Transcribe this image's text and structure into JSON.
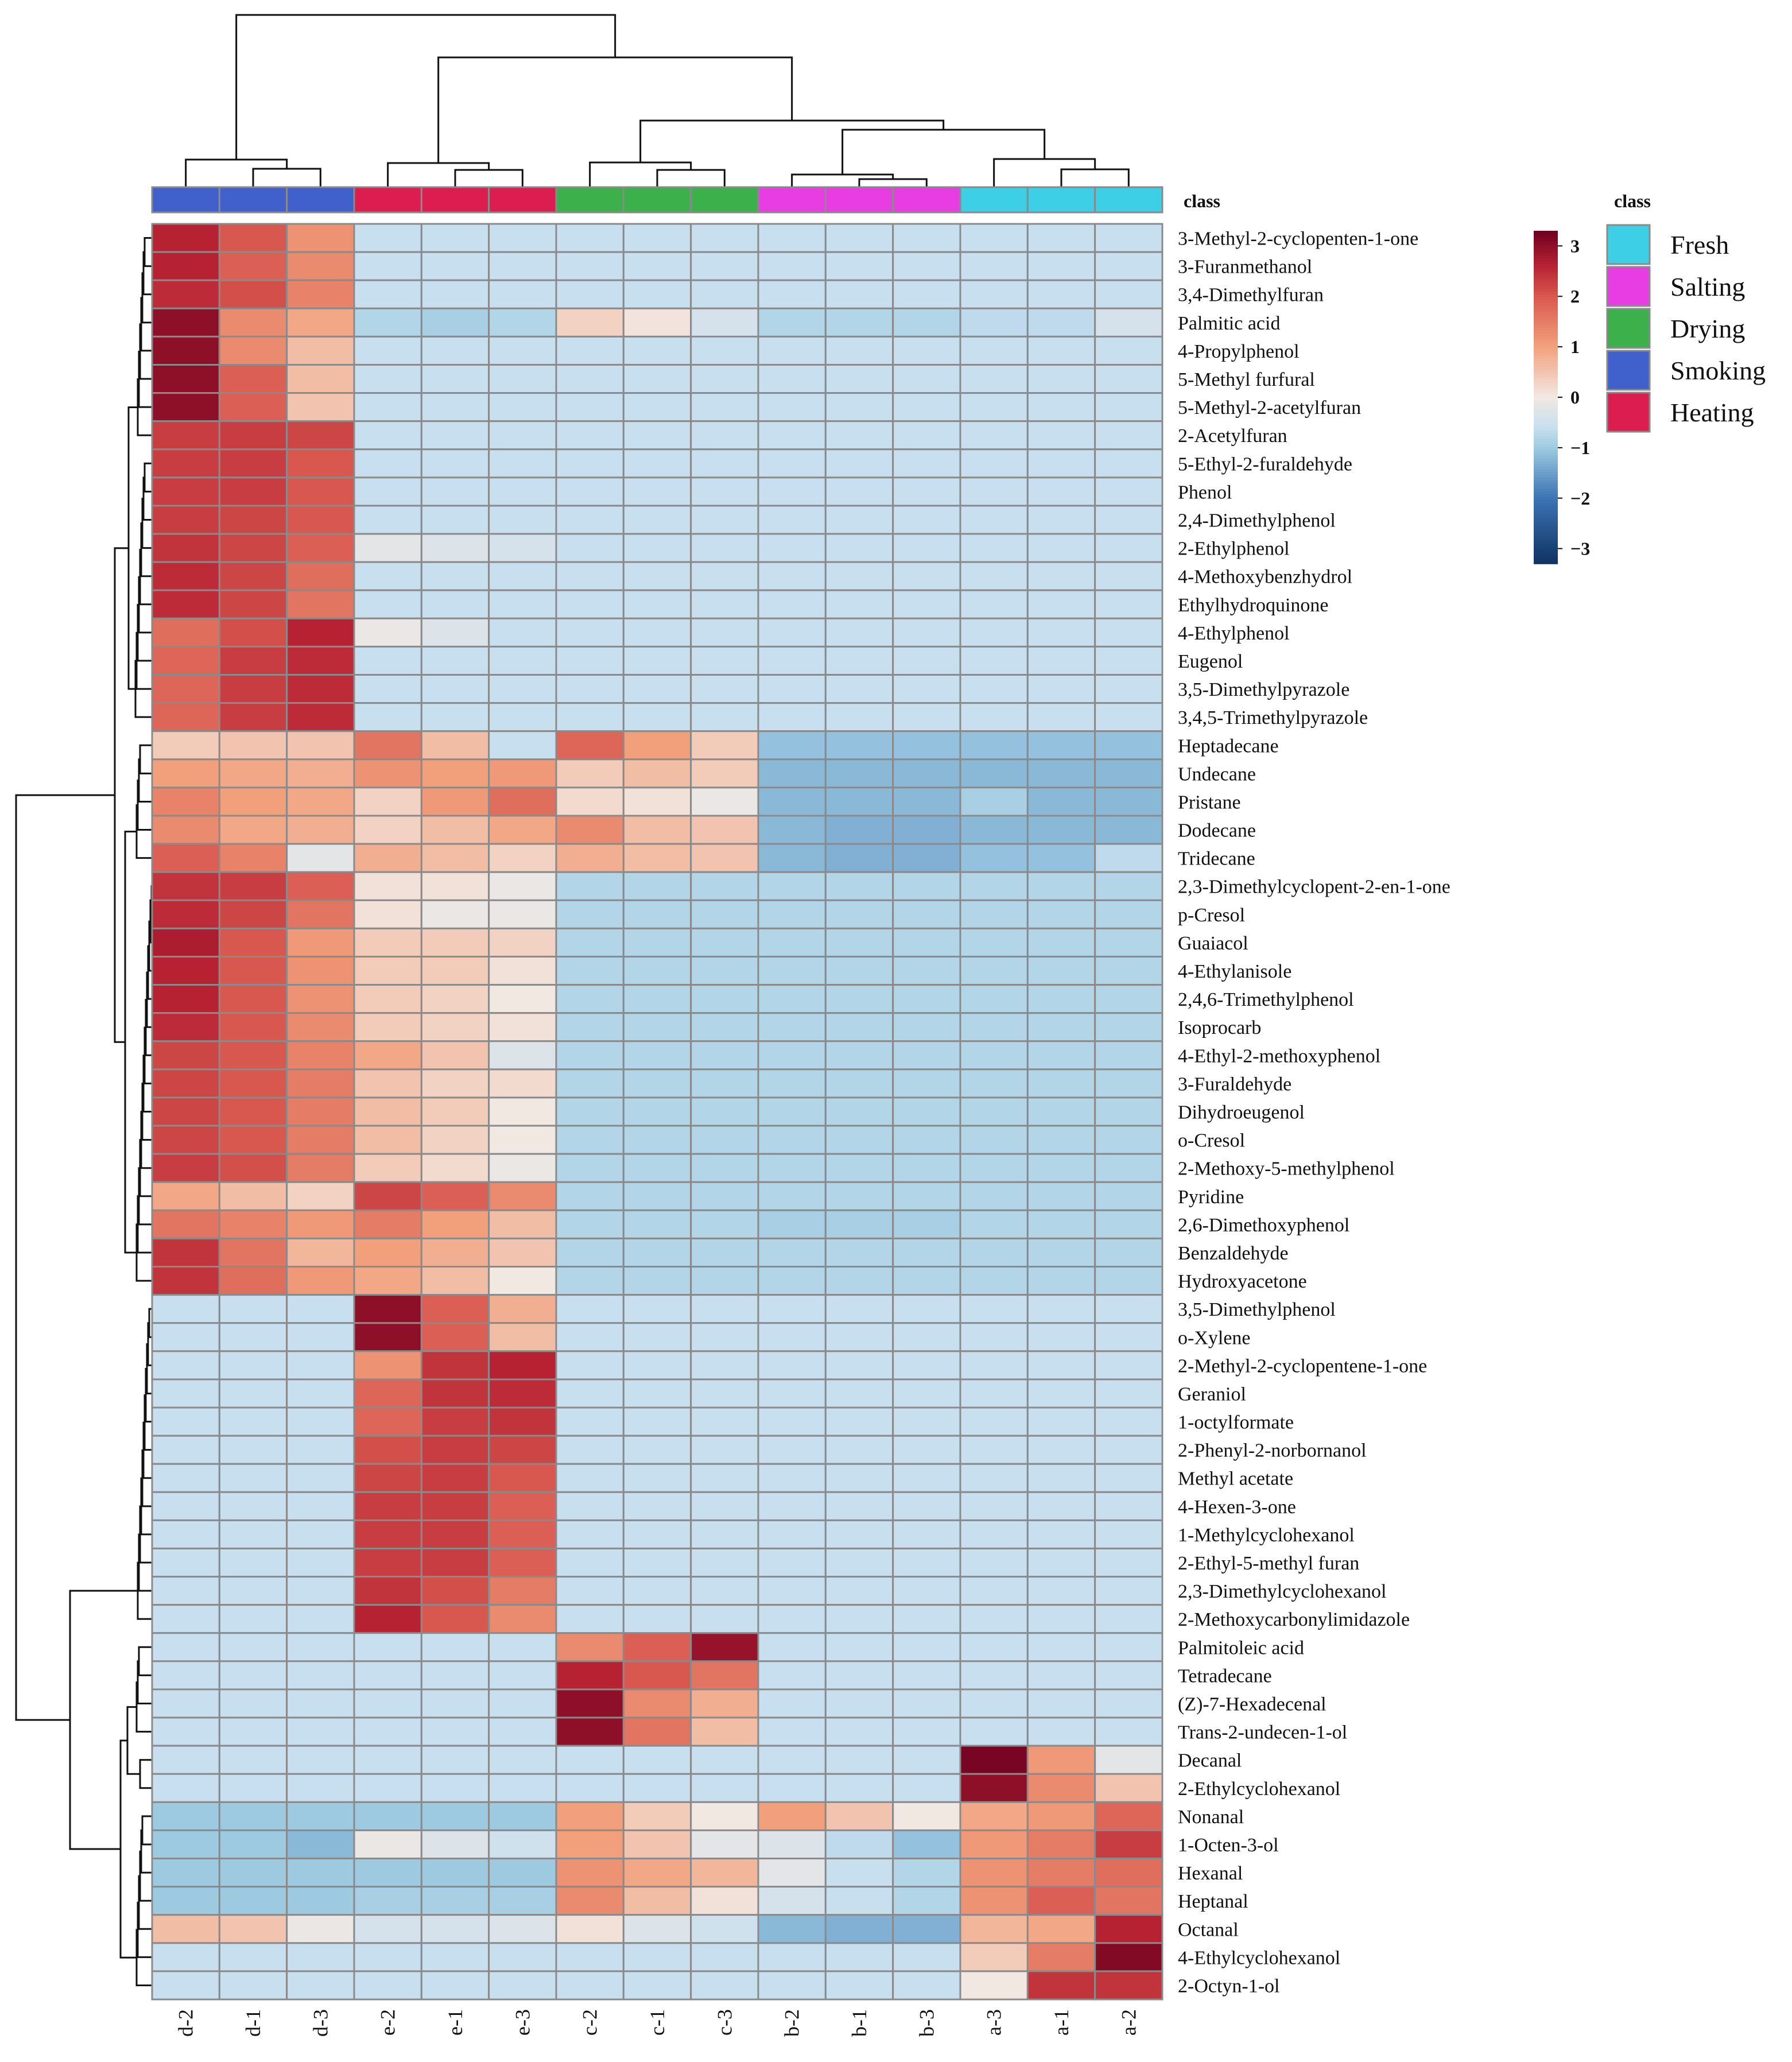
{
  "chart_data": {
    "type": "heatmap",
    "title": "",
    "columns": [
      "d-2",
      "d-1",
      "d-3",
      "e-2",
      "e-1",
      "e-3",
      "c-2",
      "c-1",
      "c-3",
      "b-2",
      "b-1",
      "b-3",
      "a-3",
      "a-1",
      "a-2"
    ],
    "column_class": [
      "Smoking",
      "Smoking",
      "Smoking",
      "Heating",
      "Heating",
      "Heating",
      "Drying",
      "Drying",
      "Drying",
      "Salting",
      "Salting",
      "Salting",
      "Fresh",
      "Fresh",
      "Fresh"
    ],
    "rows": [
      "3-Methyl-2-cyclopenten-1-one",
      "3-Furanmethanol",
      "3,4-Dimethylfuran",
      "Palmitic acid",
      "4-Propylphenol",
      "5-Methyl furfural",
      "5-Methyl-2-acetylfuran",
      "2-Acetylfuran",
      "5-Ethyl-2-furaldehyde",
      "Phenol",
      "2,4-Dimethylphenol",
      "2-Ethylphenol",
      "4-Methoxybenzhydrol",
      "Ethylhydroquinone",
      "4-Ethylphenol",
      "Eugenol",
      "3,5-Dimethylpyrazole",
      "3,4,5-Trimethylpyrazole",
      "Heptadecane",
      "Undecane",
      "Pristane",
      "Dodecane",
      "Tridecane",
      "2,3-Dimethylcyclopent-2-en-1-one",
      "p-Cresol",
      "Guaiacol",
      "4-Ethylanisole",
      "2,4,6-Trimethylphenol",
      "Isoprocarb",
      "4-Ethyl-2-methoxyphenol",
      "3-Furaldehyde",
      "Dihydroeugenol",
      "o-Cresol",
      "2-Methoxy-5-methylphenol",
      "Pyridine",
      "2,6-Dimethoxyphenol",
      "Benzaldehyde",
      "Hydroxyacetone",
      "3,5-Dimethylphenol",
      "o-Xylene",
      "2-Methyl-2-cyclopentene-1-one",
      "Geraniol",
      "1-octylformate",
      "2-Phenyl-2-norbornanol",
      "Methyl acetate",
      "4-Hexen-3-one",
      "1-Methylcyclohexanol",
      "2-Ethyl-5-methyl furan",
      "2,3-Dimethylcyclohexanol",
      "2-Methoxycarbonylimidazole",
      "Palmitoleic acid",
      "Tetradecane",
      "(Z)-7-Hexadecenal",
      "Trans-2-undecen-1-ol",
      "Decanal",
      "2-Ethylcyclohexanol",
      "Nonanal",
      "1-Octen-3-ol",
      "Hexanal",
      "Heptanal",
      "Octanal",
      "4-Ethylcyclohexanol",
      "2-Octyn-1-ol"
    ],
    "values": [
      [
        2.6,
        2.0,
        1.2,
        -0.6,
        -0.6,
        -0.6,
        -0.6,
        -0.6,
        -0.6,
        -0.6,
        -0.6,
        -0.6,
        -0.6,
        -0.6,
        -0.6
      ],
      [
        2.6,
        1.9,
        1.3,
        -0.6,
        -0.6,
        -0.6,
        -0.6,
        -0.6,
        -0.6,
        -0.6,
        -0.6,
        -0.6,
        -0.6,
        -0.6,
        -0.6
      ],
      [
        2.5,
        2.1,
        1.4,
        -0.6,
        -0.6,
        -0.6,
        -0.6,
        -0.6,
        -0.6,
        -0.6,
        -0.6,
        -0.6,
        -0.6,
        -0.6,
        -0.6
      ],
      [
        3.0,
        1.3,
        0.9,
        -0.8,
        -0.9,
        -0.8,
        0.3,
        0.05,
        -0.4,
        -0.8,
        -0.8,
        -0.8,
        -0.7,
        -0.7,
        -0.4
      ],
      [
        3.0,
        1.3,
        0.6,
        -0.6,
        -0.6,
        -0.6,
        -0.6,
        -0.6,
        -0.6,
        -0.6,
        -0.6,
        -0.6,
        -0.6,
        -0.6,
        -0.6
      ],
      [
        3.0,
        1.9,
        0.6,
        -0.6,
        -0.6,
        -0.6,
        -0.6,
        -0.6,
        -0.6,
        -0.6,
        -0.6,
        -0.6,
        -0.6,
        -0.6,
        -0.6
      ],
      [
        3.0,
        1.9,
        0.5,
        -0.6,
        -0.6,
        -0.6,
        -0.6,
        -0.6,
        -0.6,
        -0.6,
        -0.6,
        -0.6,
        -0.6,
        -0.6,
        -0.6
      ],
      [
        2.3,
        2.3,
        2.2,
        -0.6,
        -0.6,
        -0.6,
        -0.6,
        -0.6,
        -0.6,
        -0.6,
        -0.6,
        -0.6,
        -0.6,
        -0.6,
        -0.6
      ],
      [
        2.3,
        2.3,
        2.0,
        -0.6,
        -0.6,
        -0.6,
        -0.6,
        -0.6,
        -0.6,
        -0.6,
        -0.6,
        -0.6,
        -0.6,
        -0.6,
        -0.6
      ],
      [
        2.3,
        2.3,
        2.0,
        -0.6,
        -0.6,
        -0.6,
        -0.6,
        -0.6,
        -0.6,
        -0.6,
        -0.6,
        -0.6,
        -0.6,
        -0.6,
        -0.6
      ],
      [
        2.3,
        2.2,
        2.0,
        -0.6,
        -0.6,
        -0.6,
        -0.6,
        -0.6,
        -0.6,
        -0.6,
        -0.6,
        -0.6,
        -0.6,
        -0.6,
        -0.6
      ],
      [
        2.4,
        2.2,
        1.9,
        -0.2,
        -0.3,
        -0.4,
        -0.6,
        -0.6,
        -0.6,
        -0.6,
        -0.6,
        -0.6,
        -0.6,
        -0.6,
        -0.6
      ],
      [
        2.5,
        2.2,
        1.7,
        -0.6,
        -0.6,
        -0.6,
        -0.6,
        -0.6,
        -0.6,
        -0.6,
        -0.6,
        -0.6,
        -0.6,
        -0.6,
        -0.6
      ],
      [
        2.5,
        2.2,
        1.6,
        -0.6,
        -0.6,
        -0.6,
        -0.6,
        -0.6,
        -0.6,
        -0.6,
        -0.6,
        -0.6,
        -0.6,
        -0.6,
        -0.6
      ],
      [
        1.7,
        2.1,
        2.6,
        -0.1,
        -0.3,
        -0.6,
        -0.6,
        -0.6,
        -0.6,
        -0.6,
        -0.6,
        -0.6,
        -0.6,
        -0.6,
        -0.6
      ],
      [
        1.8,
        2.3,
        2.5,
        -0.6,
        -0.6,
        -0.6,
        -0.6,
        -0.6,
        -0.6,
        -0.6,
        -0.6,
        -0.6,
        -0.6,
        -0.6,
        -0.6
      ],
      [
        1.8,
        2.3,
        2.5,
        -0.6,
        -0.6,
        -0.6,
        -0.6,
        -0.6,
        -0.6,
        -0.6,
        -0.6,
        -0.6,
        -0.6,
        -0.6,
        -0.6
      ],
      [
        1.8,
        2.3,
        2.5,
        -0.6,
        -0.6,
        -0.6,
        -0.6,
        -0.6,
        -0.6,
        -0.6,
        -0.6,
        -0.6,
        -0.6,
        -0.6,
        -0.6
      ],
      [
        0.4,
        0.5,
        0.5,
        1.6,
        0.6,
        -0.6,
        1.8,
        1.0,
        0.4,
        -1.1,
        -1.1,
        -1.1,
        -1.1,
        -1.1,
        -1.1
      ],
      [
        1.0,
        0.9,
        0.8,
        1.2,
        1.0,
        1.1,
        0.4,
        0.6,
        0.4,
        -1.2,
        -1.2,
        -1.2,
        -1.2,
        -1.2,
        -1.2
      ],
      [
        1.4,
        1.0,
        0.9,
        0.3,
        1.1,
        1.7,
        0.2,
        0.1,
        -0.1,
        -1.2,
        -1.2,
        -1.2,
        -0.9,
        -1.2,
        -1.2
      ],
      [
        1.3,
        0.9,
        0.8,
        0.3,
        0.6,
        0.9,
        1.3,
        0.6,
        0.5,
        -1.2,
        -1.3,
        -1.3,
        -1.2,
        -1.2,
        -1.2
      ],
      [
        1.9,
        1.4,
        -0.2,
        0.8,
        0.6,
        0.3,
        0.8,
        0.6,
        0.5,
        -1.2,
        -1.3,
        -1.3,
        -1.1,
        -1.1,
        -0.7
      ],
      [
        2.4,
        2.3,
        1.9,
        0.1,
        0.1,
        -0.1,
        -0.8,
        -0.8,
        -0.8,
        -0.8,
        -0.8,
        -0.8,
        -0.8,
        -0.8,
        -0.8
      ],
      [
        2.5,
        2.2,
        1.6,
        0.1,
        -0.1,
        -0.1,
        -0.8,
        -0.8,
        -0.8,
        -0.8,
        -0.8,
        -0.8,
        -0.8,
        -0.8,
        -0.8
      ],
      [
        2.7,
        2.0,
        1.1,
        0.4,
        0.4,
        0.3,
        -0.8,
        -0.8,
        -0.8,
        -0.8,
        -0.8,
        -0.8,
        -0.8,
        -0.8,
        -0.8
      ],
      [
        2.6,
        2.0,
        1.2,
        0.4,
        0.4,
        0.1,
        -0.8,
        -0.8,
        -0.8,
        -0.8,
        -0.8,
        -0.8,
        -0.8,
        -0.8,
        -0.8
      ],
      [
        2.6,
        2.0,
        1.2,
        0.4,
        0.3,
        0.0,
        -0.8,
        -0.8,
        -0.8,
        -0.8,
        -0.8,
        -0.8,
        -0.8,
        -0.8,
        -0.8
      ],
      [
        2.5,
        2.0,
        1.3,
        0.4,
        0.3,
        0.1,
        -0.8,
        -0.8,
        -0.8,
        -0.8,
        -0.8,
        -0.8,
        -0.8,
        -0.8,
        -0.8
      ],
      [
        2.2,
        2.0,
        1.4,
        0.9,
        0.5,
        -0.3,
        -0.8,
        -0.8,
        -0.8,
        -0.8,
        -0.8,
        -0.8,
        -0.8,
        -0.8,
        -0.8
      ],
      [
        2.2,
        2.0,
        1.5,
        0.5,
        0.3,
        0.2,
        -0.8,
        -0.8,
        -0.8,
        -0.8,
        -0.8,
        -0.8,
        -0.8,
        -0.8,
        -0.8
      ],
      [
        2.2,
        2.0,
        1.5,
        0.6,
        0.4,
        0.0,
        -0.8,
        -0.8,
        -0.8,
        -0.8,
        -0.8,
        -0.8,
        -0.8,
        -0.8,
        -0.8
      ],
      [
        2.2,
        2.0,
        1.5,
        0.6,
        0.3,
        0.0,
        -0.8,
        -0.8,
        -0.8,
        -0.8,
        -0.8,
        -0.8,
        -0.8,
        -0.8,
        -0.8
      ],
      [
        2.3,
        2.1,
        1.5,
        0.4,
        0.2,
        -0.1,
        -0.8,
        -0.8,
        -0.8,
        -0.8,
        -0.8,
        -0.8,
        -0.8,
        -0.8,
        -0.8
      ],
      [
        0.9,
        0.6,
        0.3,
        2.2,
        1.9,
        1.3,
        -0.8,
        -0.8,
        -0.8,
        -0.8,
        -0.8,
        -0.8,
        -0.8,
        -0.8,
        -0.8
      ],
      [
        1.6,
        1.4,
        1.1,
        1.5,
        1.0,
        0.6,
        -0.8,
        -0.8,
        -0.8,
        -0.9,
        -0.9,
        -0.9,
        -0.8,
        -0.8,
        -0.8
      ],
      [
        2.4,
        1.6,
        0.7,
        1.0,
        0.8,
        0.5,
        -0.8,
        -0.8,
        -0.8,
        -0.8,
        -0.8,
        -0.8,
        -0.8,
        -0.8,
        -0.8
      ],
      [
        2.4,
        1.7,
        1.1,
        0.9,
        0.6,
        0.0,
        -0.8,
        -0.8,
        -0.8,
        -0.8,
        -0.8,
        -0.8,
        -0.8,
        -0.8,
        -0.8
      ],
      [
        -0.6,
        -0.6,
        -0.6,
        3.0,
        1.9,
        0.8,
        -0.6,
        -0.6,
        -0.6,
        -0.6,
        -0.6,
        -0.6,
        -0.6,
        -0.6,
        -0.6
      ],
      [
        -0.6,
        -0.6,
        -0.6,
        3.0,
        1.9,
        0.6,
        -0.6,
        -0.6,
        -0.6,
        -0.6,
        -0.6,
        -0.6,
        -0.6,
        -0.6,
        -0.6
      ],
      [
        -0.6,
        -0.6,
        -0.6,
        1.2,
        2.4,
        2.6,
        -0.6,
        -0.6,
        -0.6,
        -0.6,
        -0.6,
        -0.6,
        -0.6,
        -0.6,
        -0.6
      ],
      [
        -0.6,
        -0.6,
        -0.6,
        1.8,
        2.4,
        2.5,
        -0.6,
        -0.6,
        -0.6,
        -0.6,
        -0.6,
        -0.6,
        -0.6,
        -0.6,
        -0.6
      ],
      [
        -0.6,
        -0.6,
        -0.6,
        1.8,
        2.3,
        2.4,
        -0.6,
        -0.6,
        -0.6,
        -0.6,
        -0.6,
        -0.6,
        -0.6,
        -0.6,
        -0.6
      ],
      [
        -0.6,
        -0.6,
        -0.6,
        2.1,
        2.3,
        2.2,
        -0.6,
        -0.6,
        -0.6,
        -0.6,
        -0.6,
        -0.6,
        -0.6,
        -0.6,
        -0.6
      ],
      [
        -0.6,
        -0.6,
        -0.6,
        2.2,
        2.3,
        2.0,
        -0.6,
        -0.6,
        -0.6,
        -0.6,
        -0.6,
        -0.6,
        -0.6,
        -0.6,
        -0.6
      ],
      [
        -0.6,
        -0.6,
        -0.6,
        2.3,
        2.3,
        1.9,
        -0.6,
        -0.6,
        -0.6,
        -0.6,
        -0.6,
        -0.6,
        -0.6,
        -0.6,
        -0.6
      ],
      [
        -0.6,
        -0.6,
        -0.6,
        2.3,
        2.3,
        1.9,
        -0.6,
        -0.6,
        -0.6,
        -0.6,
        -0.6,
        -0.6,
        -0.6,
        -0.6,
        -0.6
      ],
      [
        -0.6,
        -0.6,
        -0.6,
        2.3,
        2.3,
        1.9,
        -0.6,
        -0.6,
        -0.6,
        -0.6,
        -0.6,
        -0.6,
        -0.6,
        -0.6,
        -0.6
      ],
      [
        -0.6,
        -0.6,
        -0.6,
        2.4,
        2.1,
        1.5,
        -0.6,
        -0.6,
        -0.6,
        -0.6,
        -0.6,
        -0.6,
        -0.6,
        -0.6,
        -0.6
      ],
      [
        -0.6,
        -0.6,
        -0.6,
        2.6,
        2.0,
        1.3,
        -0.6,
        -0.6,
        -0.6,
        -0.6,
        -0.6,
        -0.6,
        -0.6,
        -0.6,
        -0.6
      ],
      [
        -0.6,
        -0.6,
        -0.6,
        -0.6,
        -0.6,
        -0.6,
        1.3,
        1.9,
        2.9,
        -0.6,
        -0.6,
        -0.6,
        -0.6,
        -0.6,
        -0.6
      ],
      [
        -0.6,
        -0.6,
        -0.6,
        -0.6,
        -0.6,
        -0.6,
        2.6,
        2.0,
        1.6,
        -0.6,
        -0.6,
        -0.6,
        -0.6,
        -0.6,
        -0.6
      ],
      [
        -0.6,
        -0.6,
        -0.6,
        -0.6,
        -0.6,
        -0.6,
        3.0,
        1.3,
        0.8,
        -0.6,
        -0.6,
        -0.6,
        -0.6,
        -0.6,
        -0.6
      ],
      [
        -0.6,
        -0.6,
        -0.6,
        -0.6,
        -0.6,
        -0.6,
        3.0,
        1.6,
        0.6,
        -0.6,
        -0.6,
        -0.6,
        -0.6,
        -0.6,
        -0.6
      ],
      [
        -0.6,
        -0.6,
        -0.6,
        -0.6,
        -0.6,
        -0.6,
        -0.6,
        -0.6,
        -0.6,
        -0.6,
        -0.6,
        -0.6,
        3.2,
        1.1,
        -0.2
      ],
      [
        -0.6,
        -0.6,
        -0.6,
        -0.6,
        -0.6,
        -0.6,
        -0.6,
        -0.6,
        -0.6,
        -0.6,
        -0.6,
        -0.6,
        3.0,
        1.3,
        0.5
      ],
      [
        -1.0,
        -1.0,
        -1.0,
        -1.0,
        -1.0,
        -1.0,
        1.0,
        0.4,
        0.0,
        1.0,
        0.5,
        0.0,
        0.9,
        1.1,
        1.8
      ],
      [
        -1.0,
        -1.0,
        -1.2,
        -0.1,
        -0.3,
        -0.5,
        1.0,
        0.5,
        -0.2,
        -0.3,
        -0.7,
        -1.1,
        1.1,
        1.5,
        2.3
      ],
      [
        -1.0,
        -1.0,
        -1.0,
        -1.0,
        -1.0,
        -1.0,
        1.2,
        0.9,
        0.7,
        -0.2,
        -0.6,
        -0.8,
        1.2,
        1.5,
        1.7
      ],
      [
        -1.0,
        -1.0,
        -1.0,
        -0.9,
        -0.9,
        -0.9,
        1.3,
        0.6,
        0.1,
        -0.4,
        -0.6,
        -0.8,
        1.2,
        1.9,
        1.6
      ],
      [
        0.6,
        0.5,
        -0.1,
        -0.4,
        -0.4,
        -0.3,
        0.1,
        -0.3,
        -0.5,
        -1.2,
        -1.3,
        -1.3,
        0.7,
        0.9,
        2.6
      ],
      [
        -0.6,
        -0.6,
        -0.6,
        -0.6,
        -0.6,
        -0.6,
        -0.6,
        -0.6,
        -0.6,
        -0.6,
        -0.6,
        -0.6,
        0.4,
        1.5,
        3.1
      ],
      [
        -0.6,
        -0.6,
        -0.6,
        -0.6,
        -0.6,
        -0.6,
        -0.6,
        -0.6,
        -0.6,
        -0.6,
        -0.6,
        -0.6,
        0.0,
        2.4,
        2.4
      ]
    ],
    "color_scale": {
      "min": -3.3,
      "max": 3.3,
      "stops": [
        {
          "value": -3.3,
          "color": "#0f3363"
        },
        {
          "value": -2.0,
          "color": "#3c74b4"
        },
        {
          "value": -1.0,
          "color": "#9ecae1"
        },
        {
          "value": -0.6,
          "color": "#c8dfef"
        },
        {
          "value": 0.0,
          "color": "#f2e8e2"
        },
        {
          "value": 1.0,
          "color": "#f2a07c"
        },
        {
          "value": 2.0,
          "color": "#d8584f"
        },
        {
          "value": 2.6,
          "color": "#b72233"
        },
        {
          "value": 3.3,
          "color": "#6d0020"
        }
      ],
      "ticks": [
        3,
        2,
        1,
        0,
        -1,
        -2,
        -3
      ],
      "tick_labels": [
        "3",
        "2",
        "1",
        "0",
        "−1",
        "−2",
        "−3"
      ]
    },
    "class_annotation": {
      "title": "class",
      "classes": [
        {
          "name": "Fresh",
          "color": "#3ccfe6"
        },
        {
          "name": "Salting",
          "color": "#e73de2"
        },
        {
          "name": "Drying",
          "color": "#3cb04a"
        },
        {
          "name": "Smoking",
          "color": "#4060cc"
        },
        {
          "name": "Heating",
          "color": "#dc1d4f"
        }
      ]
    },
    "legend_position": "right",
    "dendrograms": [
      "top",
      "left"
    ]
  }
}
